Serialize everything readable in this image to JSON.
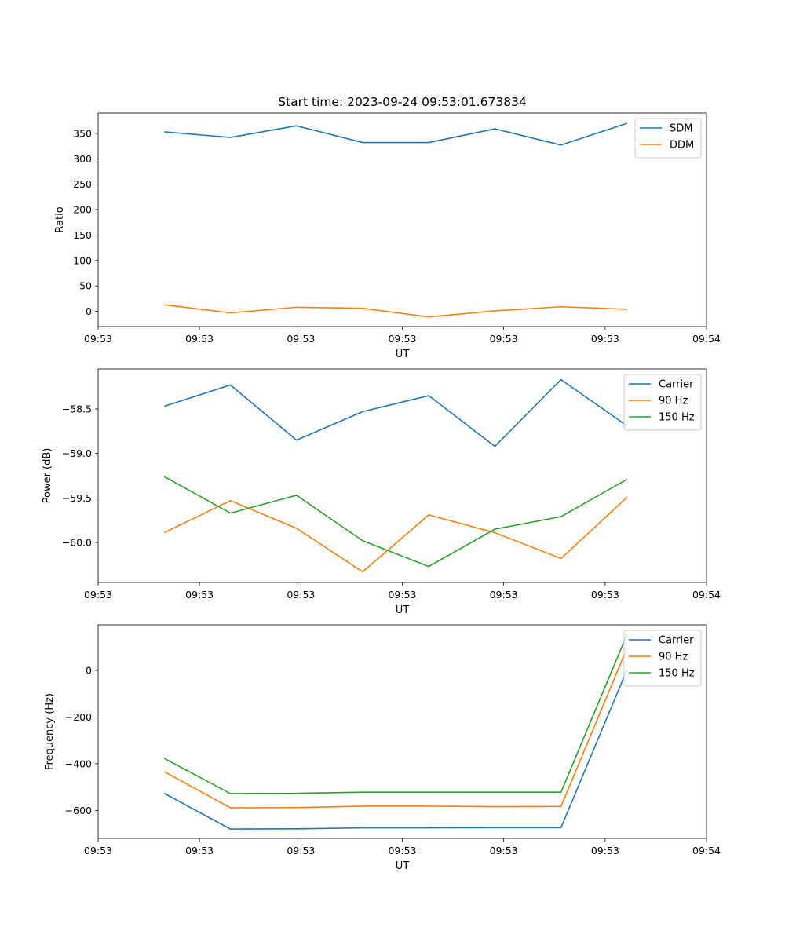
{
  "figure": {
    "title": "Start time: 2023-09-24 09:53:01.673834"
  },
  "chart_data": [
    {
      "type": "line",
      "title": "Start time: 2023-09-24 09:53:01.673834",
      "xlabel": "UT",
      "ylabel": "Ratio",
      "x": [
        1,
        2,
        3,
        4,
        5,
        6,
        7,
        8
      ],
      "x_range": [
        0,
        9.2
      ],
      "x_tick_values": [
        0,
        1.533,
        3.067,
        4.6,
        6.133,
        7.667,
        9.2
      ],
      "x_tick_labels": [
        "09:53",
        "09:53",
        "09:53",
        "09:53",
        "09:53",
        "09:53",
        "09:54"
      ],
      "ylim": [
        -30,
        390
      ],
      "y_tick_values": [
        0,
        50,
        100,
        150,
        200,
        250,
        300,
        350
      ],
      "y_tick_labels": [
        "0",
        "50",
        "100",
        "150",
        "200",
        "250",
        "300",
        "350"
      ],
      "legend_position": "top-right",
      "series": [
        {
          "name": "SDM",
          "color": "#1f77b4",
          "values": [
            353,
            342,
            365,
            332,
            332,
            359,
            327,
            370
          ]
        },
        {
          "name": "DDM",
          "color": "#ff7f0e",
          "values": [
            13,
            -3,
            8,
            6,
            -11,
            1,
            9,
            4
          ]
        }
      ]
    },
    {
      "type": "line",
      "title": "",
      "xlabel": "UT",
      "ylabel": "Power (dB)",
      "x": [
        1,
        2,
        3,
        4,
        5,
        6,
        7,
        8
      ],
      "x_range": [
        0,
        9.2
      ],
      "x_tick_values": [
        0,
        1.533,
        3.067,
        4.6,
        6.133,
        7.667,
        9.2
      ],
      "x_tick_labels": [
        "09:53",
        "09:53",
        "09:53",
        "09:53",
        "09:53",
        "09:53",
        "09:54"
      ],
      "ylim": [
        -60.45,
        -58.05
      ],
      "y_tick_values": [
        -60.0,
        -59.5,
        -59.0,
        -58.5
      ],
      "y_tick_labels": [
        "−60.0",
        "−59.5",
        "−59.0",
        "−58.5"
      ],
      "legend_position": "top-right",
      "series": [
        {
          "name": "Carrier",
          "color": "#1f77b4",
          "values": [
            -58.47,
            -58.23,
            -58.85,
            -58.53,
            -58.35,
            -58.92,
            -58.17,
            -58.69
          ]
        },
        {
          "name": "90 Hz",
          "color": "#ff7f0e",
          "values": [
            -59.89,
            -59.53,
            -59.84,
            -60.33,
            -59.69,
            -59.89,
            -60.18,
            -59.49
          ]
        },
        {
          "name": "150 Hz",
          "color": "#2ca02c",
          "values": [
            -59.26,
            -59.67,
            -59.47,
            -59.98,
            -60.27,
            -59.85,
            -59.71,
            -59.29
          ]
        }
      ]
    },
    {
      "type": "line",
      "title": "",
      "xlabel": "UT",
      "ylabel": "Frequency (Hz)",
      "x": [
        1,
        2,
        3,
        4,
        5,
        6,
        7,
        8
      ],
      "x_range": [
        0,
        9.2
      ],
      "x_tick_values": [
        0,
        1.533,
        3.067,
        4.6,
        6.133,
        7.667,
        9.2
      ],
      "x_tick_labels": [
        "09:53",
        "09:53",
        "09:53",
        "09:53",
        "09:53",
        "09:53",
        "09:54"
      ],
      "ylim": [
        -720,
        195
      ],
      "y_tick_values": [
        -600,
        -400,
        -200,
        0
      ],
      "y_tick_labels": [
        "−600",
        "−400",
        "−200",
        "0"
      ],
      "legend_position": "top-right",
      "series": [
        {
          "name": "Carrier",
          "color": "#1f77b4",
          "values": [
            -527,
            -680,
            -679,
            -675,
            -675,
            -674,
            -674,
            4
          ]
        },
        {
          "name": "90 Hz",
          "color": "#ff7f0e",
          "values": [
            -434,
            -589,
            -588,
            -582,
            -582,
            -584,
            -583,
            97
          ]
        },
        {
          "name": "150 Hz",
          "color": "#2ca02c",
          "values": [
            -377,
            -528,
            -527,
            -522,
            -522,
            -522,
            -522,
            155
          ]
        }
      ]
    }
  ]
}
